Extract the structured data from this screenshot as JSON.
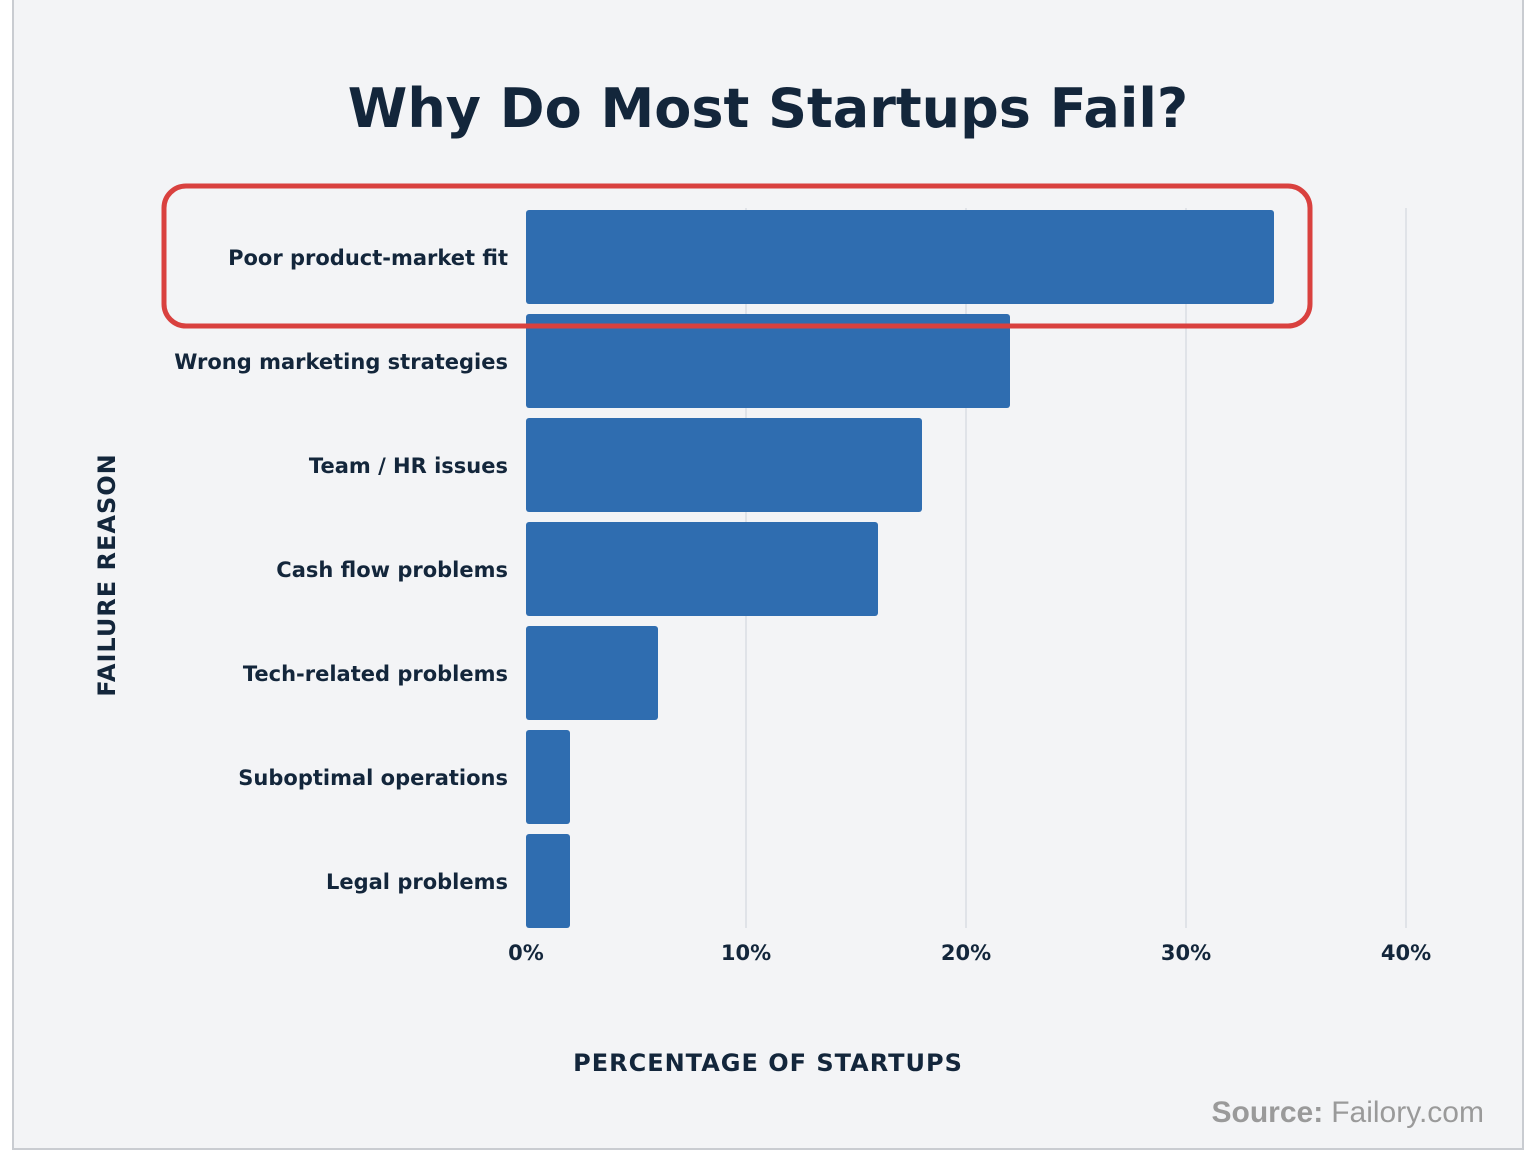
{
  "chart_data": {
    "type": "bar",
    "orientation": "horizontal",
    "title": "Why Do Most Startups Fail?",
    "xlabel": "PERCENTAGE OF STARTUPS",
    "ylabel": "FAILURE REASON",
    "categories": [
      "Poor product-market fit",
      "Wrong marketing strategies",
      "Team / HR issues",
      "Cash flow problems",
      "Tech-related problems",
      "Suboptimal operations",
      "Legal problems"
    ],
    "values": [
      34,
      22,
      18,
      16,
      6,
      2,
      2
    ],
    "unit": "%",
    "xlim": [
      0,
      40
    ],
    "xticks": [
      0,
      10,
      20,
      30,
      40
    ],
    "xtick_labels": [
      "0%",
      "10%",
      "20%",
      "30%",
      "40%"
    ],
    "grid": "vertical",
    "highlighted_category": "Poor product-market fit",
    "colors": {
      "bar": "#2f6db0",
      "highlight_box": "#d9413f",
      "text": "#13263b",
      "grid": "#e0e3e8",
      "background": "#f3f4f6"
    }
  },
  "source": {
    "label": "Source:",
    "value": "Failory.com"
  }
}
